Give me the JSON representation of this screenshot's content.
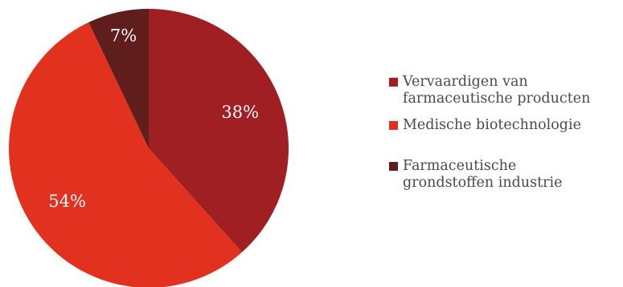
{
  "chart_data": {
    "type": "pie",
    "title": "",
    "slices": [
      {
        "label": "Vervaardigen van\nfarmaceutische producten",
        "value": 38,
        "value_label": "38%",
        "color": "#a01f22"
      },
      {
        "label": "Medische biotechnologie",
        "value": 54,
        "value_label": "54%",
        "color": "#e2321f"
      },
      {
        "label": "Farmaceutische\ngrondstoffen industrie",
        "value": 7,
        "value_label": "7%",
        "color": "#5f1e1b"
      }
    ],
    "legend_position": "right"
  }
}
